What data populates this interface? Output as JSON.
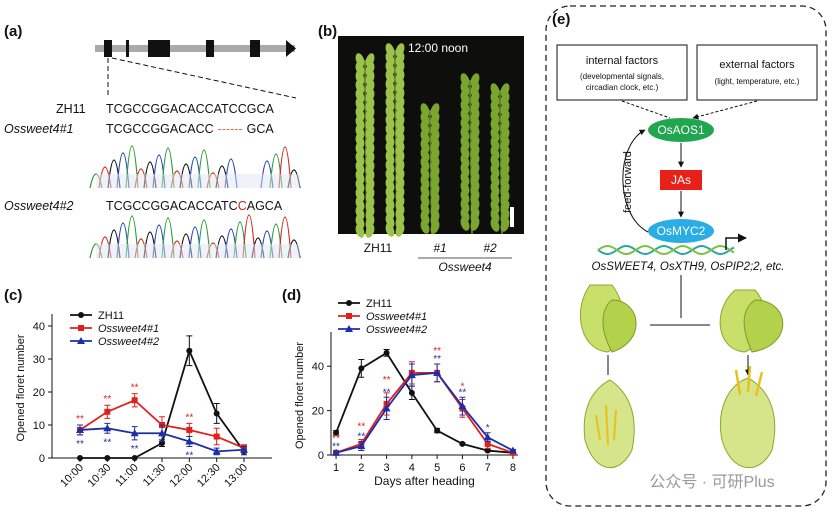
{
  "panel_a": {
    "label": "(a)",
    "wt_name": "ZH11",
    "wt_seq": "TCGCCGGACACCATCCGCA",
    "m1_name": "Ossweet4#1",
    "m1_seq_a": "TCGCCGGACACC",
    "m1_gap": "------",
    "m1_seq_b": "GCA",
    "m2_name": "Ossweet4#2",
    "m2_seq_a": "TCGCCGGACACCATC",
    "m2_ins": "C",
    "m2_seq_b": "AGCA"
  },
  "panel_b": {
    "label": "(b)",
    "time": "12:00 noon",
    "wt": "ZH11",
    "line1": "#1",
    "line2": "#2",
    "group": "Ossweet4"
  },
  "panel_e": {
    "label": "(e)",
    "internal_title": "internal factors",
    "internal_line1": "(developmental signals,",
    "internal_line2": "circadian clock, etc.)",
    "external_title": "external factors",
    "external_line1": "(light, temperature, etc.)",
    "node1": "OsAOS1",
    "node2": "JAs",
    "node3": "OsMYC2",
    "loop": "feed-forward",
    "targets": "OsSWEET4, OsXTH9, OsPIP2;2, etc."
  },
  "watermark": "公众号 · 可研Plus",
  "chart_data": [
    {
      "type": "line",
      "label": "(c)",
      "ylabel": "Opened floret number",
      "categories": [
        "10:00",
        "10:30",
        "11:00",
        "11:30",
        "12:00",
        "12:30",
        "13:00"
      ],
      "ylim": [
        0,
        40
      ],
      "yticks": [
        0,
        10,
        20,
        30,
        40
      ],
      "series": [
        {
          "name": "ZH11",
          "color": "#111111",
          "marker": "circle",
          "values": [
            0,
            0,
            0,
            4.5,
            32.5,
            13.5,
            2
          ],
          "errors": [
            0,
            0,
            0,
            1,
            4.5,
            3,
            1
          ],
          "annotations": [
            null,
            null,
            null,
            null,
            null,
            null,
            null
          ]
        },
        {
          "name": "Ossweet4#1",
          "color": "#e0201b",
          "marker": "square",
          "values": [
            8.5,
            14,
            17.5,
            10,
            8.5,
            6.5,
            3
          ],
          "errors": [
            1.5,
            2,
            2,
            2.5,
            2,
            2.5,
            1
          ],
          "annotations": [
            "**",
            "**",
            "**",
            null,
            "**",
            null,
            null
          ]
        },
        {
          "name": "Ossweet4#2",
          "color": "#1c2fa8",
          "marker": "triangle",
          "values": [
            8.5,
            9,
            7.5,
            7.5,
            5,
            2,
            2.5
          ],
          "errors": [
            1.5,
            1.5,
            2,
            2.5,
            1.5,
            1,
            1
          ],
          "annotations": [
            "**",
            "**",
            "**",
            null,
            "**",
            null,
            null
          ]
        }
      ]
    },
    {
      "type": "line",
      "label": "(d)",
      "ylabel": "Opened floret number",
      "xlabel": "Days after heading",
      "x": [
        1,
        2,
        3,
        4,
        5,
        6,
        7,
        8
      ],
      "xlim": [
        0.8,
        8.2
      ],
      "xticks": [
        1,
        2,
        3,
        4,
        5,
        6,
        7,
        8
      ],
      "ylim": [
        0,
        50
      ],
      "yticks": [
        0,
        20,
        40
      ],
      "series": [
        {
          "name": "ZH11",
          "color": "#111111",
          "marker": "circle",
          "values": [
            10,
            39,
            46,
            28,
            11,
            5,
            2,
            1
          ],
          "errors": [
            1,
            4,
            1.5,
            3,
            1,
            0.5,
            0.5,
            0.3
          ],
          "annotations": [
            null,
            null,
            null,
            null,
            null,
            null,
            null,
            null
          ]
        },
        {
          "name": "Ossweet4#1",
          "color": "#e0201b",
          "marker": "square",
          "values": [
            1,
            5,
            23,
            37,
            37,
            21,
            5,
            1
          ],
          "errors": [
            0.5,
            2,
            5,
            5,
            4,
            4,
            2,
            0.5
          ],
          "annotations": [
            "**",
            "**",
            "**",
            null,
            "**",
            "*",
            null,
            null
          ]
        },
        {
          "name": "Ossweet4#2",
          "color": "#1c2fa8",
          "marker": "triangle",
          "values": [
            1,
            4,
            21,
            36,
            37,
            22,
            8,
            2
          ],
          "errors": [
            0.5,
            2,
            5,
            5,
            4,
            4,
            2,
            0.5
          ],
          "annotations": [
            "**",
            "**",
            "**",
            null,
            "**",
            "**",
            "*",
            null
          ]
        }
      ]
    }
  ]
}
